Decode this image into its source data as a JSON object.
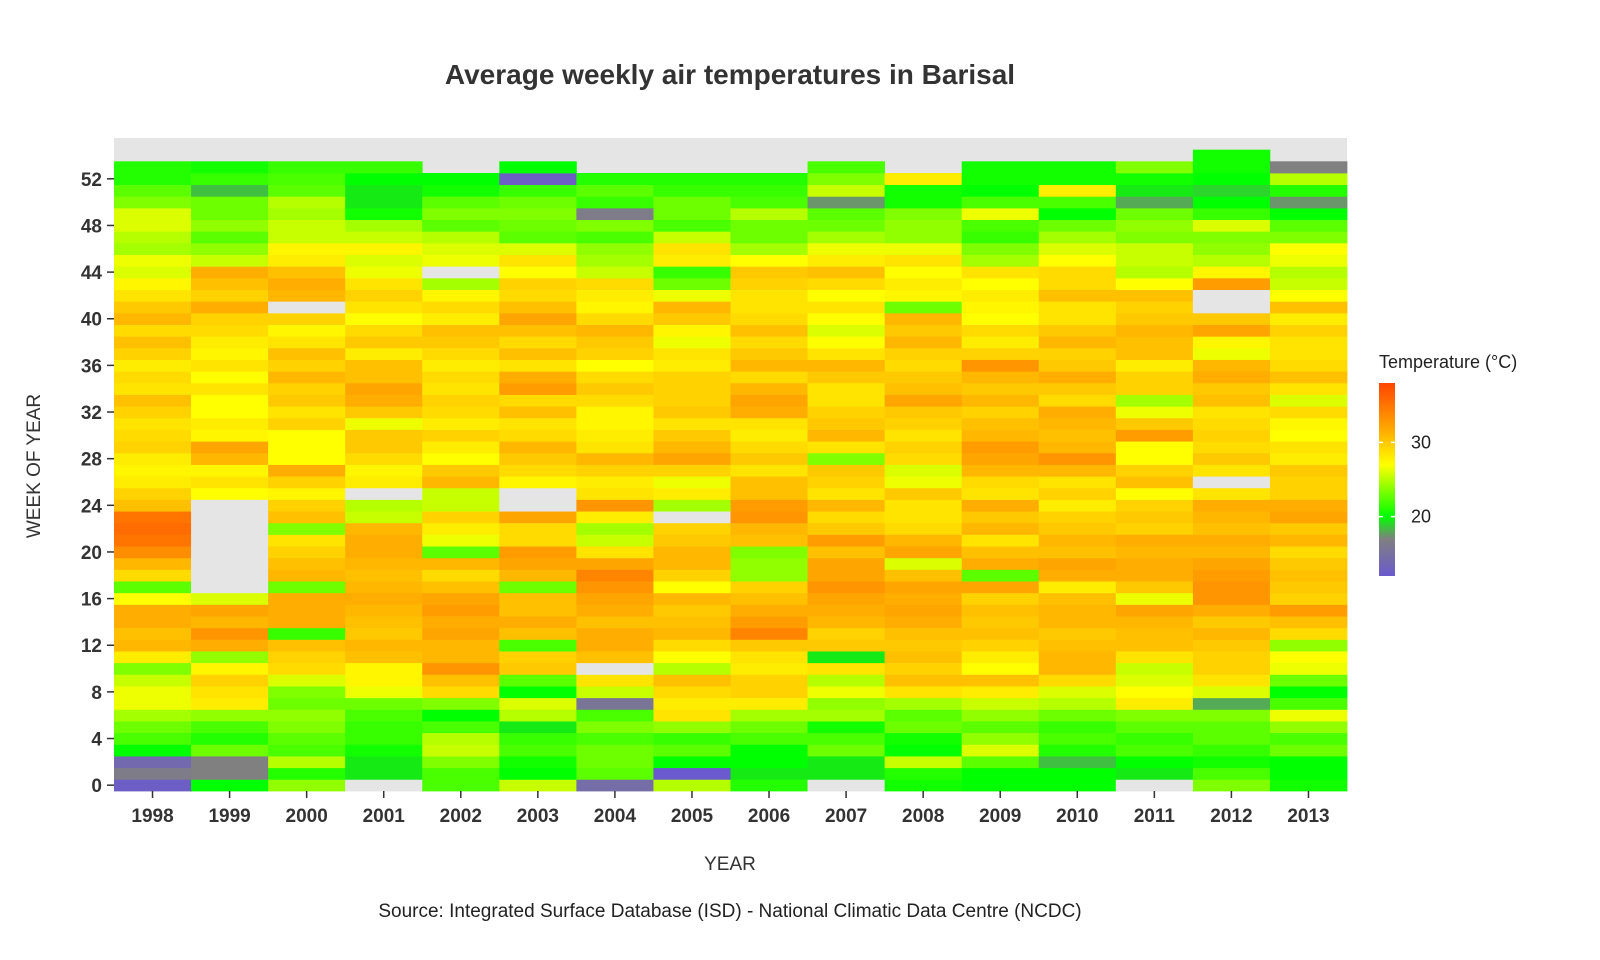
{
  "chart_data": {
    "type": "heatmap",
    "title": "Average weekly air temperatures in Barisal",
    "xlabel": "YEAR",
    "ylabel": "WEEK OF YEAR",
    "caption": "Source: Integrated Surface Database (ISD) - National Climatic Data Centre (NCDC)",
    "years": [
      1998,
      1999,
      2000,
      2001,
      2002,
      2003,
      2004,
      2005,
      2006,
      2007,
      2008,
      2009,
      2010,
      2011,
      2012,
      2013
    ],
    "x_tick_labels": [
      "1998",
      "1999",
      "2000",
      "2001",
      "2002",
      "2003",
      "2004",
      "2005",
      "2006",
      "2007",
      "2008",
      "2009",
      "2010",
      "2011",
      "2012",
      "2013"
    ],
    "y_ticks": [
      0,
      4,
      8,
      12,
      16,
      20,
      24,
      28,
      32,
      36,
      40,
      44,
      48,
      52
    ],
    "y_tick_labels": [
      "0",
      "4",
      "8",
      "12",
      "16",
      "20",
      "24",
      "28",
      "32",
      "36",
      "40",
      "44",
      "48",
      "52"
    ],
    "ylim": [
      -0.5,
      55.5
    ],
    "weeks": [
      0,
      53
    ],
    "legend": {
      "title": "Temperature (°C)",
      "ticks": [
        20,
        30
      ],
      "tick_labels": [
        "20",
        "30"
      ],
      "range": [
        12,
        38
      ],
      "stops": [
        {
          "value": 12,
          "color": "#6a5acd"
        },
        {
          "value": 17,
          "color": "#808080"
        },
        {
          "value": 20,
          "color": "#00ff00"
        },
        {
          "value": 27,
          "color": "#ffff00"
        },
        {
          "value": 32,
          "color": "#ffa500"
        },
        {
          "value": 38,
          "color": "#ff4500"
        }
      ]
    },
    "missing_color": "#e5e5e5",
    "panel_color": "#e5e5e5",
    "series": [
      {
        "year": 1998,
        "values": [
          12.5,
          16.5,
          14.0,
          20.0,
          22.0,
          23.0,
          24.5,
          26.5,
          26.5,
          25.5,
          23.5,
          28.0,
          31.0,
          30.5,
          31.5,
          31.5,
          27.0,
          22.5,
          29.0,
          31.0,
          33.5,
          35.0,
          35.5,
          35.0,
          30.5,
          29.5,
          28.0,
          27.5,
          28.0,
          29.5,
          29.0,
          28.5,
          29.5,
          30.5,
          28.5,
          29.0,
          28.0,
          29.5,
          30.5,
          29.0,
          31.0,
          30.0,
          28.5,
          27.5,
          26.0,
          26.5,
          24.5,
          25.0,
          26.0,
          26.0,
          23.5,
          22.5,
          21.0,
          21.0
        ]
      },
      {
        "year": 1999,
        "values": [
          20.0,
          17.0,
          17.0,
          23.0,
          21.0,
          22.0,
          24.0,
          28.0,
          28.5,
          29.5,
          27.5,
          24.0,
          31.5,
          33.0,
          31.0,
          32.0,
          26.0,
          null,
          null,
          null,
          null,
          null,
          null,
          null,
          null,
          27.0,
          28.5,
          27.5,
          31.0,
          32.0,
          27.5,
          28.0,
          27.0,
          27.0,
          28.5,
          27.0,
          28.5,
          27.5,
          28.0,
          29.0,
          29.5,
          31.5,
          29.5,
          30.5,
          31.5,
          25.5,
          24.0,
          22.5,
          24.0,
          23.0,
          23.0,
          18.5,
          21.5,
          20.5
        ]
      },
      {
        "year": 2000,
        "values": [
          24.0,
          21.0,
          25.0,
          22.0,
          22.5,
          23.5,
          24.0,
          23.0,
          23.5,
          26.0,
          29.0,
          29.5,
          30.5,
          21.5,
          31.5,
          31.5,
          31.5,
          23.0,
          31.0,
          30.5,
          29.5,
          28.5,
          23.5,
          30.5,
          29.5,
          27.5,
          29.5,
          31.5,
          27.0,
          27.0,
          27.0,
          29.5,
          28.5,
          30.0,
          29.5,
          31.0,
          29.5,
          30.5,
          28.5,
          27.5,
          29.5,
          null,
          31.0,
          31.5,
          30.5,
          28.0,
          27.5,
          25.5,
          25.5,
          24.5,
          25.0,
          22.5,
          22.0,
          21.5
        ]
      },
      {
        "year": 2001,
        "values": [
          null,
          19.5,
          19.5,
          20.5,
          21.5,
          21.5,
          22.0,
          23.0,
          26.5,
          27.5,
          27.5,
          30.5,
          31.0,
          30.0,
          30.5,
          31.0,
          31.5,
          31.0,
          30.5,
          31.0,
          31.5,
          31.5,
          31.0,
          25.5,
          25.0,
          null,
          28.0,
          27.5,
          29.0,
          30.0,
          30.0,
          26.5,
          30.0,
          31.5,
          32.0,
          30.5,
          30.5,
          28.0,
          30.0,
          29.0,
          27.0,
          28.5,
          29.5,
          28.5,
          26.5,
          26.0,
          27.5,
          25.5,
          24.5,
          20.5,
          19.5,
          19.5,
          20.0,
          21.5
        ]
      },
      {
        "year": 2002,
        "values": [
          22.0,
          22.0,
          23.5,
          25.5,
          25.0,
          22.0,
          20.0,
          23.5,
          29.0,
          30.5,
          33.0,
          31.0,
          31.0,
          32.0,
          31.5,
          32.5,
          32.0,
          30.5,
          29.0,
          31.0,
          22.5,
          26.5,
          28.0,
          29.5,
          25.5,
          25.5,
          31.0,
          30.0,
          27.0,
          28.0,
          29.5,
          28.0,
          29.0,
          29.5,
          28.5,
          29.0,
          28.0,
          29.0,
          30.0,
          30.5,
          28.0,
          29.0,
          27.5,
          24.5,
          null,
          26.5,
          26.0,
          25.0,
          22.5,
          23.5,
          22.5,
          20.5,
          20.0
        ]
      },
      {
        "year": 2003,
        "values": [
          25.5,
          20.0,
          20.5,
          22.0,
          21.5,
          19.5,
          25.0,
          26.0,
          20.0,
          22.5,
          30.0,
          29.5,
          22.0,
          30.5,
          31.5,
          30.5,
          30.5,
          23.0,
          31.0,
          32.0,
          32.5,
          29.0,
          29.0,
          32.0,
          null,
          null,
          27.5,
          29.0,
          30.0,
          31.0,
          29.0,
          28.5,
          30.5,
          29.0,
          32.5,
          31.5,
          28.5,
          30.5,
          29.0,
          30.5,
          32.0,
          30.5,
          29.0,
          29.5,
          27.0,
          28.5,
          26.0,
          22.5,
          23.0,
          23.5,
          23.0,
          21.5,
          12.5,
          20.0
        ]
      },
      {
        "year": 2004,
        "values": [
          14.5,
          22.5,
          23.0,
          23.0,
          22.0,
          23.5,
          22.0,
          15.5,
          25.5,
          28.5,
          null,
          30.5,
          31.5,
          31.5,
          30.5,
          31.5,
          32.0,
          33.0,
          34.0,
          32.0,
          28.5,
          25.5,
          24.5,
          28.0,
          33.0,
          28.5,
          28.0,
          29.5,
          31.0,
          28.5,
          28.0,
          27.5,
          27.5,
          29.0,
          30.0,
          29.0,
          27.0,
          29.5,
          30.0,
          31.0,
          29.0,
          27.5,
          28.0,
          29.0,
          25.5,
          24.5,
          24.0,
          22.0,
          23.5,
          16.5,
          21.5,
          22.5,
          21.0
        ]
      },
      {
        "year": 2005,
        "values": [
          25.0,
          12.0,
          20.0,
          22.5,
          21.5,
          24.0,
          28.5,
          28.0,
          29.0,
          30.5,
          25.0,
          27.0,
          29.0,
          31.0,
          30.5,
          30.0,
          31.0,
          27.0,
          29.5,
          31.0,
          31.0,
          30.0,
          29.5,
          null,
          24.5,
          28.0,
          26.5,
          29.5,
          32.0,
          31.0,
          30.0,
          28.5,
          30.0,
          29.5,
          29.5,
          29.5,
          28.0,
          28.5,
          26.5,
          27.5,
          30.0,
          31.0,
          26.5,
          23.0,
          21.5,
          28.0,
          28.5,
          25.5,
          22.0,
          23.0,
          23.0,
          21.5,
          21.0
        ]
      },
      {
        "year": 2006,
        "values": [
          21.0,
          19.5,
          20.0,
          20.0,
          22.0,
          23.0,
          24.5,
          28.0,
          29.5,
          29.5,
          28.0,
          28.5,
          30.0,
          34.0,
          32.5,
          31.5,
          30.5,
          29.5,
          24.0,
          24.0,
          23.5,
          30.5,
          31.0,
          33.0,
          32.5,
          30.5,
          30.5,
          28.5,
          30.0,
          29.0,
          28.0,
          28.5,
          31.5,
          32.0,
          31.0,
          29.0,
          31.0,
          30.0,
          29.0,
          30.5,
          29.0,
          28.5,
          28.5,
          29.5,
          30.0,
          27.0,
          24.5,
          23.0,
          23.0,
          25.0,
          22.0,
          21.5,
          21.0
        ]
      },
      {
        "year": 2007,
        "values": [
          null,
          19.5,
          19.5,
          23.0,
          22.0,
          20.5,
          24.5,
          24.0,
          26.5,
          25.0,
          28.5,
          19.5,
          30.0,
          29.5,
          31.0,
          31.5,
          32.0,
          33.0,
          32.0,
          32.0,
          30.5,
          32.5,
          30.0,
          29.0,
          31.0,
          28.5,
          29.5,
          30.0,
          23.5,
          28.5,
          31.0,
          30.0,
          29.5,
          28.5,
          28.5,
          30.0,
          31.0,
          28.5,
          27.0,
          26.0,
          27.0,
          28.5,
          27.0,
          29.0,
          30.5,
          28.0,
          26.5,
          24.5,
          23.0,
          22.5,
          17.5,
          25.5,
          23.5,
          22.0
        ]
      },
      {
        "year": 2008,
        "values": [
          20.5,
          21.0,
          25.5,
          20.0,
          20.5,
          23.0,
          22.5,
          24.5,
          28.5,
          30.5,
          29.5,
          30.5,
          30.0,
          30.5,
          31.5,
          32.0,
          31.5,
          32.0,
          30.5,
          26.0,
          32.0,
          31.0,
          29.0,
          28.5,
          28.5,
          30.0,
          26.5,
          26.0,
          29.0,
          29.5,
          28.5,
          29.5,
          30.0,
          32.0,
          30.5,
          30.0,
          29.0,
          29.5,
          31.0,
          30.0,
          31.0,
          23.0,
          27.5,
          28.0,
          27.0,
          28.5,
          26.5,
          24.0,
          24.0,
          23.5,
          20.5,
          20.5,
          28.0
        ]
      },
      {
        "year": 2009,
        "values": [
          20.0,
          20.0,
          22.5,
          26.0,
          24.0,
          22.5,
          24.0,
          25.5,
          28.0,
          30.5,
          27.0,
          28.0,
          29.5,
          30.5,
          30.0,
          30.5,
          29.5,
          32.0,
          22.5,
          31.5,
          30.5,
          28.5,
          31.0,
          30.0,
          31.5,
          28.5,
          29.0,
          31.0,
          32.0,
          32.5,
          31.0,
          30.5,
          29.5,
          31.0,
          30.0,
          31.0,
          33.0,
          29.5,
          28.0,
          29.0,
          27.0,
          27.5,
          28.0,
          27.0,
          28.5,
          24.5,
          23.5,
          21.5,
          22.0,
          26.5,
          22.0,
          20.0,
          20.5,
          20.5
        ]
      },
      {
        "year": 2010,
        "values": [
          20.0,
          20.0,
          18.5,
          21.0,
          22.0,
          21.5,
          23.0,
          25.0,
          26.0,
          29.0,
          31.0,
          31.0,
          30.5,
          30.0,
          31.0,
          31.0,
          30.5,
          28.0,
          31.5,
          32.0,
          30.5,
          31.0,
          30.0,
          29.5,
          28.0,
          29.5,
          28.5,
          31.0,
          33.0,
          31.0,
          30.5,
          31.0,
          31.5,
          29.0,
          30.0,
          31.5,
          30.0,
          29.5,
          31.0,
          30.0,
          28.5,
          28.5,
          30.5,
          29.0,
          29.0,
          27.0,
          26.0,
          24.5,
          23.0,
          20.0,
          22.0,
          28.0,
          20.5,
          20.5
        ]
      },
      {
        "year": 2011,
        "values": [
          null,
          19.5,
          20.0,
          22.0,
          21.5,
          22.5,
          23.5,
          28.0,
          27.0,
          26.0,
          25.5,
          28.5,
          30.5,
          30.5,
          31.0,
          32.0,
          26.5,
          30.0,
          31.5,
          31.5,
          31.0,
          31.5,
          29.5,
          30.0,
          29.5,
          27.0,
          30.5,
          29.5,
          27.0,
          27.0,
          32.5,
          30.0,
          26.5,
          24.5,
          29.5,
          29.5,
          28.0,
          30.5,
          30.5,
          31.0,
          30.0,
          29.5,
          30.5,
          27.0,
          25.0,
          25.5,
          25.5,
          23.5,
          24.0,
          23.0,
          18.0,
          19.5,
          20.5,
          23.5
        ]
      },
      {
        "year": 2012,
        "values": [
          23.5,
          22.0,
          20.5,
          21.5,
          22.5,
          22.5,
          23.5,
          18.0,
          26.0,
          28.5,
          29.5,
          29.5,
          30.0,
          31.0,
          30.0,
          31.5,
          33.0,
          33.0,
          32.5,
          32.0,
          31.0,
          31.5,
          30.5,
          31.0,
          31.5,
          28.5,
          null,
          28.5,
          30.0,
          29.0,
          29.5,
          29.0,
          28.5,
          30.5,
          30.0,
          31.5,
          31.0,
          26.5,
          27.5,
          32.0,
          30.0,
          null,
          null,
          32.5,
          27.5,
          25.0,
          24.0,
          23.5,
          26.0,
          21.5,
          20.0,
          19.0,
          20.0,
          20.5,
          20.5
        ]
      },
      {
        "year": 2013,
        "values": [
          20.5,
          20.0,
          20.0,
          23.0,
          22.0,
          24.0,
          26.5,
          22.0,
          20.0,
          23.0,
          26.5,
          27.0,
          24.0,
          29.0,
          30.5,
          32.5,
          29.5,
          30.0,
          30.5,
          30.0,
          29.0,
          31.0,
          30.0,
          32.0,
          31.5,
          29.5,
          29.5,
          30.0,
          28.0,
          28.5,
          27.0,
          27.5,
          29.0,
          26.0,
          28.5,
          30.5,
          29.0,
          28.5,
          28.5,
          29.5,
          28.0,
          30.5,
          27.0,
          25.5,
          25.0,
          26.5,
          27.0,
          23.5,
          22.5,
          20.0,
          17.5,
          21.0,
          25.0,
          17.0
        ]
      }
    ]
  }
}
